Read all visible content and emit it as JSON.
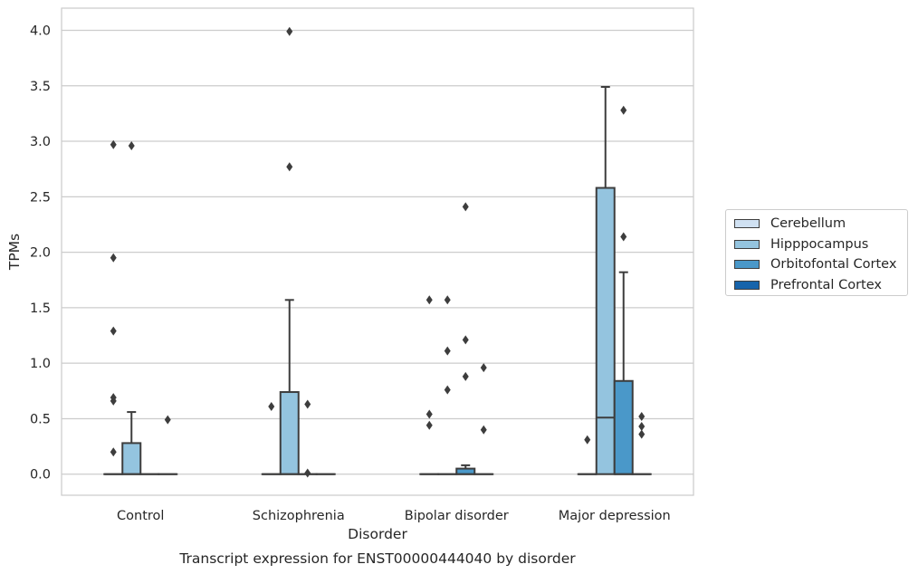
{
  "chart_data": {
    "type": "box",
    "title": "Transcript expression for ENST00000444040 by disorder",
    "xlabel": "Disorder",
    "ylabel": "TPMs",
    "ylim": [
      -0.19,
      4.2
    ],
    "yticks": [
      "0.0",
      "0.5",
      "1.0",
      "1.5",
      "2.0",
      "2.5",
      "3.0",
      "3.5",
      "4.0"
    ],
    "categories": [
      "Control",
      "Schizophrenia",
      "Bipolar disorder",
      "Major depression"
    ],
    "grid": true,
    "legend_position": "right",
    "series": [
      {
        "name": "Cerebellum",
        "color": "#d0e1f2",
        "boxes": [
          {
            "q1": 0,
            "median": 0,
            "q3": 0,
            "whislo": 0,
            "whishi": 0,
            "fliers": [
              0.2,
              0.66,
              0.69,
              1.29,
              1.95,
              2.97
            ]
          },
          {
            "q1": 0,
            "median": 0,
            "q3": 0,
            "whislo": 0,
            "whishi": 0,
            "fliers": [
              0.61
            ]
          },
          {
            "q1": 0,
            "median": 0,
            "q3": 0,
            "whislo": 0,
            "whishi": 0,
            "fliers": [
              0.44,
              0.54,
              1.57
            ]
          },
          {
            "q1": 0,
            "median": 0,
            "q3": 0,
            "whislo": 0,
            "whishi": 0,
            "fliers": [
              0.31
            ]
          }
        ]
      },
      {
        "name": "Hipppocampus",
        "color": "#94c4df",
        "boxes": [
          {
            "q1": 0,
            "median": 0,
            "q3": 0.28,
            "whislo": 0,
            "whishi": 0.56,
            "fliers": [
              2.96
            ]
          },
          {
            "q1": 0,
            "median": 0,
            "q3": 0.74,
            "whislo": 0,
            "whishi": 1.57,
            "fliers": [
              2.77,
              3.99
            ]
          },
          {
            "q1": 0,
            "median": 0,
            "q3": 0,
            "whislo": 0,
            "whishi": 0,
            "fliers": [
              0.76,
              1.11,
              1.57
            ]
          },
          {
            "q1": 0,
            "median": 0.51,
            "q3": 2.58,
            "whislo": 0,
            "whishi": 3.49,
            "fliers": []
          }
        ]
      },
      {
        "name": "Orbitofontal Cortex",
        "color": "#4a98c9",
        "boxes": [
          {
            "q1": 0,
            "median": 0,
            "q3": 0,
            "whislo": 0,
            "whishi": 0,
            "fliers": []
          },
          {
            "q1": 0,
            "median": 0,
            "q3": 0,
            "whislo": 0,
            "whishi": 0,
            "fliers": [
              0.01,
              0.63
            ]
          },
          {
            "q1": 0,
            "median": 0,
            "q3": 0.05,
            "whislo": 0,
            "whishi": 0.08,
            "fliers": [
              0.88,
              1.21,
              2.41
            ]
          },
          {
            "q1": 0,
            "median": 0,
            "q3": 0.84,
            "whislo": 0,
            "whishi": 1.82,
            "fliers": [
              2.14,
              3.28
            ]
          }
        ]
      },
      {
        "name": "Prefrontal Cortex",
        "color": "#1764ab",
        "boxes": [
          {
            "q1": 0,
            "median": 0,
            "q3": 0,
            "whislo": 0,
            "whishi": 0,
            "fliers": [
              0.49
            ]
          },
          {
            "q1": 0,
            "median": 0,
            "q3": 0,
            "whislo": 0,
            "whishi": 0,
            "fliers": []
          },
          {
            "q1": 0,
            "median": 0,
            "q3": 0,
            "whislo": 0,
            "whishi": 0,
            "fliers": [
              0.4,
              0.96
            ]
          },
          {
            "q1": 0,
            "median": 0,
            "q3": 0,
            "whislo": 0,
            "whishi": 0,
            "fliers": [
              0.36,
              0.43,
              0.52
            ]
          }
        ]
      }
    ]
  }
}
